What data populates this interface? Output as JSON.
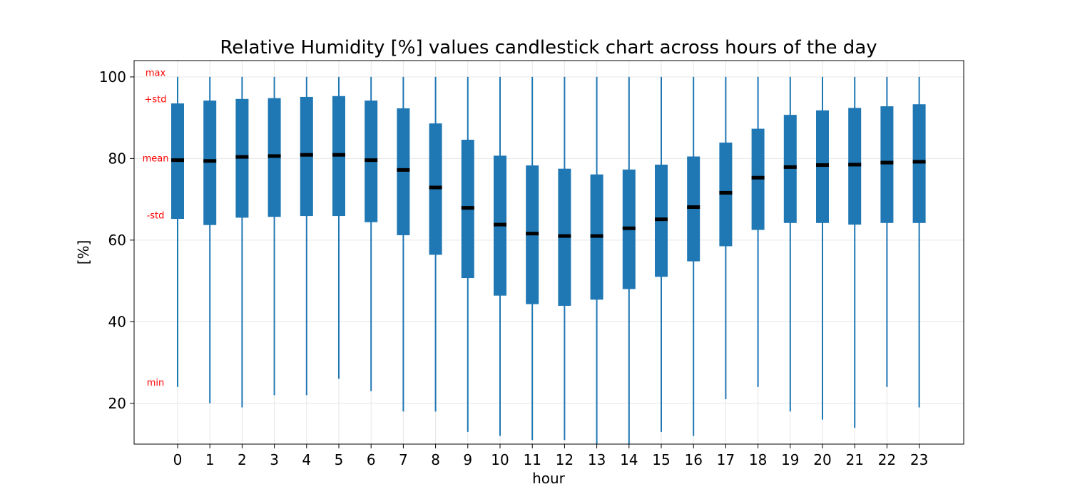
{
  "chart_data": {
    "type": "candlestick",
    "title": "Relative Humidity [%] values candlestick chart across hours of the day",
    "xlabel": "hour",
    "ylabel": "[%]",
    "ylim": [
      10,
      104
    ],
    "yticks": [
      20,
      40,
      60,
      80,
      100
    ],
    "grid": true,
    "colors": {
      "body": "#1f77b4",
      "mean": "#000000",
      "annotation": "#ff0000",
      "grid": "#e6e6e6"
    },
    "annotations": [
      {
        "text": "max",
        "y": 100.9
      },
      {
        "text": "+std",
        "y": 94.5
      },
      {
        "text": "mean",
        "y": 80.0
      },
      {
        "text": "-std",
        "y": 66.0
      },
      {
        "text": "min",
        "y": 25.0
      }
    ],
    "x": [
      0,
      1,
      2,
      3,
      4,
      5,
      6,
      7,
      8,
      9,
      10,
      11,
      12,
      13,
      14,
      15,
      16,
      17,
      18,
      19,
      20,
      21,
      22,
      23
    ],
    "min": [
      24,
      20,
      19,
      22,
      22,
      26,
      23,
      18,
      18,
      13,
      12,
      11,
      11,
      10,
      10,
      13,
      12,
      21,
      24,
      18,
      16,
      14,
      24,
      19
    ],
    "minus_std": [
      65.2,
      63.7,
      65.5,
      65.7,
      65.9,
      65.9,
      64.4,
      61.2,
      56.4,
      50.7,
      46.4,
      44.3,
      43.9,
      45.4,
      48.0,
      51.0,
      54.8,
      58.5,
      62.5,
      64.2,
      64.2,
      63.8,
      64.2,
      64.2
    ],
    "mean": [
      79.6,
      79.4,
      80.4,
      80.6,
      80.9,
      80.9,
      79.6,
      77.2,
      72.9,
      67.9,
      63.8,
      61.6,
      61.0,
      61.0,
      62.9,
      65.1,
      68.1,
      71.6,
      75.3,
      77.9,
      78.4,
      78.5,
      79.0,
      79.2
    ],
    "plus_std": [
      93.5,
      94.2,
      94.6,
      94.8,
      95.1,
      95.3,
      94.2,
      92.3,
      88.6,
      84.6,
      80.7,
      78.3,
      77.5,
      76.1,
      77.3,
      78.5,
      80.5,
      83.9,
      87.3,
      90.7,
      91.8,
      92.4,
      92.8,
      93.3
    ],
    "max": [
      100,
      100,
      100,
      100,
      100,
      100,
      100,
      100,
      100,
      100,
      100,
      100,
      100,
      100,
      100,
      100,
      100,
      100,
      100,
      100,
      100,
      100,
      100,
      100
    ]
  }
}
